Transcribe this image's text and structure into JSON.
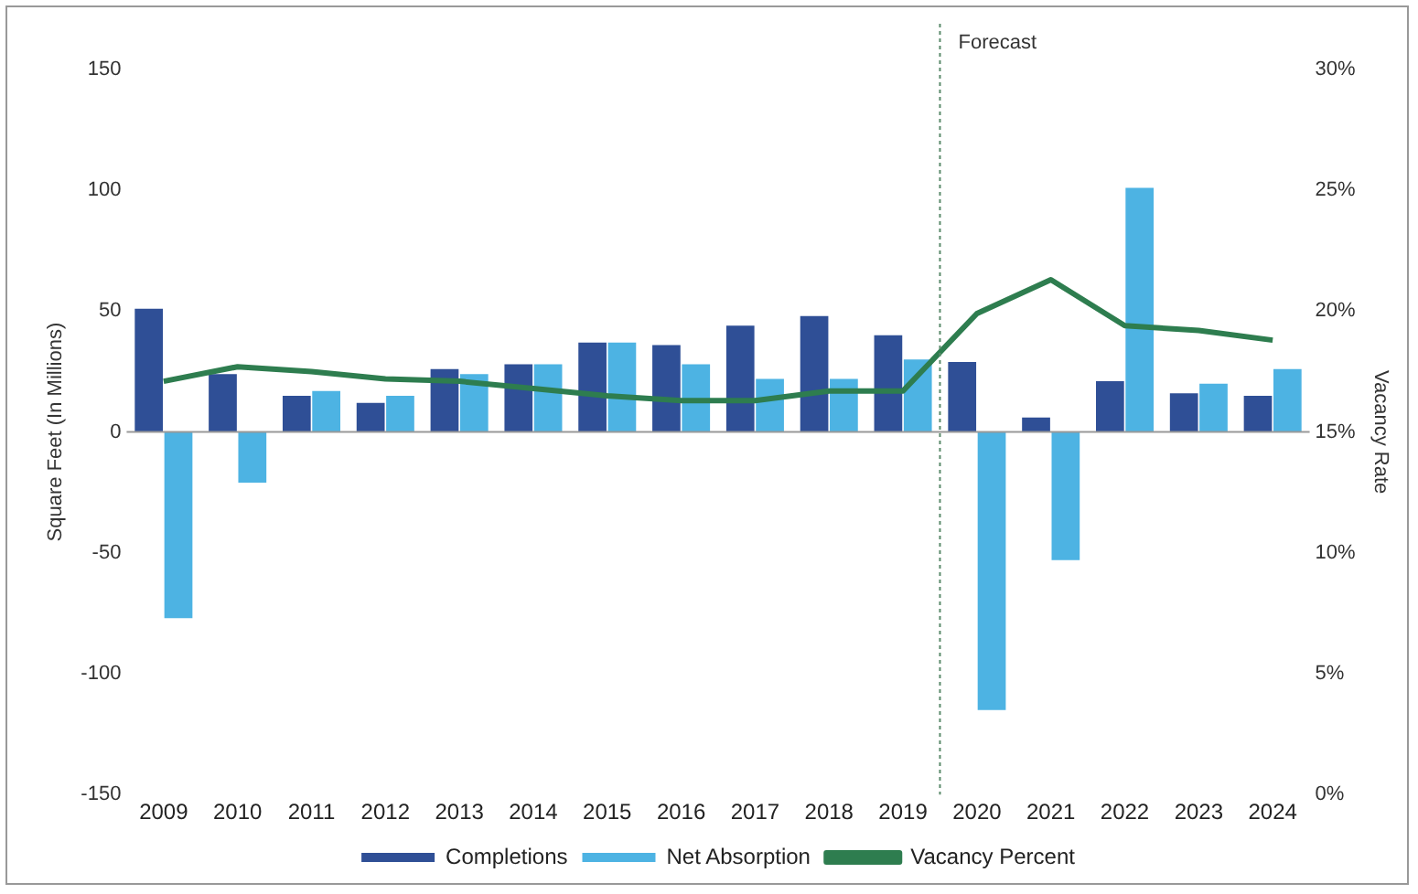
{
  "chart_data": {
    "type": "bar",
    "ylabel": "Square Feet (In Millions)",
    "y2label": "Vacancy Rate",
    "categories": [
      "2009",
      "2010",
      "2011",
      "2012",
      "2013",
      "2014",
      "2015",
      "2016",
      "2017",
      "2018",
      "2019",
      "2020",
      "2021",
      "2022",
      "2023",
      "2024"
    ],
    "series": [
      {
        "name": "Completions",
        "color": "#2f4f96",
        "values": [
          51,
          24,
          15,
          12,
          26,
          28,
          37,
          36,
          44,
          48,
          40,
          29,
          6,
          21,
          16,
          15
        ]
      },
      {
        "name": "Net Absorption",
        "color": "#4db3e3",
        "values": [
          -77,
          -21,
          17,
          15,
          24,
          28,
          37,
          28,
          22,
          22,
          30,
          -115,
          -53,
          101,
          20,
          26
        ]
      },
      {
        "name": "Vacancy Percent",
        "type": "line",
        "axis": "y2",
        "color": "#2e7d4f",
        "values": [
          17.1,
          17.7,
          17.5,
          17.2,
          17.1,
          16.8,
          16.5,
          16.3,
          16.3,
          16.7,
          16.7,
          19.9,
          21.3,
          19.4,
          19.2,
          18.8
        ]
      }
    ],
    "ylim": [
      -150,
      150
    ],
    "yticks": [
      -150,
      -100,
      -50,
      0,
      50,
      100,
      150
    ],
    "y2lim": [
      0,
      30
    ],
    "y2ticks": [
      {
        "value": 0,
        "label": "0%"
      },
      {
        "value": 5,
        "label": "5%"
      },
      {
        "value": 10,
        "label": "10%"
      },
      {
        "value": 15,
        "label": "15%"
      },
      {
        "value": 20,
        "label": "20%"
      },
      {
        "value": 25,
        "label": "25%"
      },
      {
        "value": 30,
        "label": "30%"
      }
    ],
    "ref_lines": [
      {
        "axis": "x",
        "value": "2020",
        "label": "Forecast",
        "color": "#5a8a6a",
        "line_style": "dotted"
      }
    ],
    "grid": false,
    "legend": "bottom",
    "marker": "none",
    "line_style": "solid"
  }
}
